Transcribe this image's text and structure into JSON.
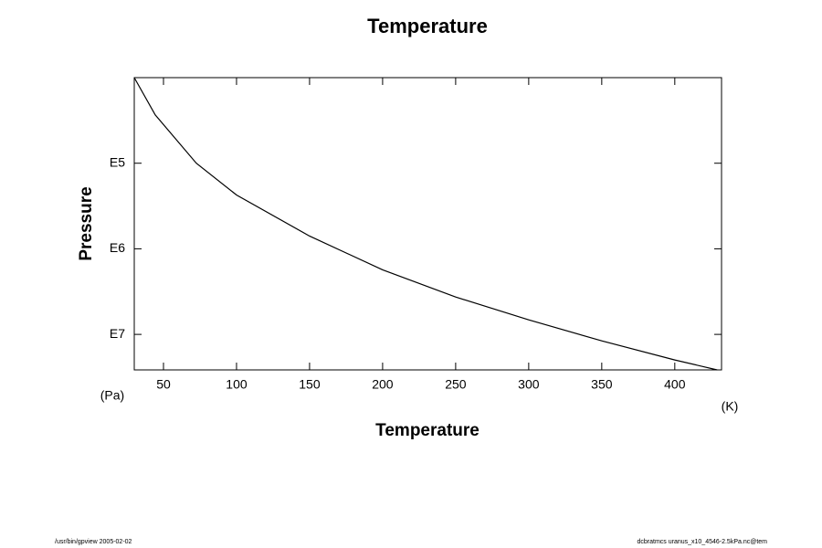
{
  "chart_data": {
    "type": "line",
    "title": "Temperature",
    "x_label": "Temperature",
    "y_label": "Pressure",
    "x_unit": "(K)",
    "y_unit": "(Pa)",
    "x": [
      30,
      44.4,
      72.5,
      100,
      150,
      200,
      250,
      300,
      350,
      400,
      429
    ],
    "series": [
      {
        "name": "Temperature",
        "color": "#000000",
        "values": [
          10000,
          27300,
          100000,
          235000,
          710000,
          1760000,
          3660000,
          6760000,
          11900000,
          19900000,
          26000000
        ]
      }
    ],
    "xlim": [
      30,
      432
    ],
    "xticks": [
      50,
      100,
      150,
      200,
      250,
      300,
      350,
      400
    ],
    "ylim": [
      10000,
      26000000
    ],
    "y_log": true,
    "y_inverted": true,
    "yticks": [
      {
        "value": 100000,
        "label": "E5"
      },
      {
        "value": 1000000,
        "label": "E6"
      },
      {
        "value": 10000000,
        "label": "E7"
      }
    ],
    "footer_left": "/usr/bin/gpview 2005-02-02",
    "footer_right": "dcbratmcs uranus_x10_4546-2.5kPa.nc@tem"
  }
}
